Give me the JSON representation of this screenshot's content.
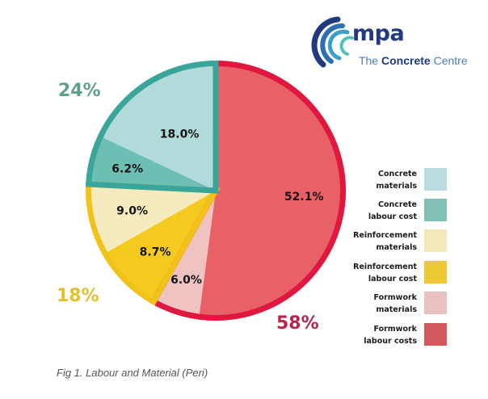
{
  "logo": {
    "brand": "mpa",
    "subtitle_prefix": "The",
    "subtitle_bold": "Concrete",
    "subtitle_suffix": "Centre"
  },
  "caption": "Fig 1. Labour and Material (Peri)",
  "colors": {
    "concrete_border": "#3aa59a",
    "reinforcement_border": "#f2c21a",
    "formwork_border": "#e0173f",
    "concrete_group_text": "#5fa08c",
    "reinforcement_group_text": "#e6bf2c",
    "formwork_group_text": "#b5254a"
  },
  "chart_data": {
    "type": "pie",
    "title": "Fig 1. Labour and Material (Peri)",
    "start_angle": "12 o'clock",
    "direction": "clockwise",
    "slices": [
      {
        "name": "Formwork labour costs",
        "value": 52.1,
        "label": "52.1%",
        "color": "#e86166",
        "group": "formwork"
      },
      {
        "name": "Formwork materials",
        "value": 6.0,
        "label": "6.0%",
        "color": "#efc3c2",
        "group": "formwork"
      },
      {
        "name": "Reinforcement labour cost",
        "value": 8.7,
        "label": "8.7%",
        "color": "#f4ca1e",
        "group": "reinforcement"
      },
      {
        "name": "Reinforcement materials",
        "value": 9.0,
        "label": "9.0%",
        "color": "#f6ebbf",
        "group": "reinforcement"
      },
      {
        "name": "Concrete labour cost",
        "value": 6.2,
        "label": "6.2%",
        "color": "#6dbfb3",
        "group": "concrete"
      },
      {
        "name": "Concrete materials",
        "value": 18.0,
        "label": "18.0%",
        "color": "#b1dbd8",
        "group": "concrete"
      }
    ],
    "groups": [
      {
        "name": "concrete",
        "total_label": "24%",
        "total": 24
      },
      {
        "name": "reinforcement",
        "total_label": "18%",
        "total": 18
      },
      {
        "name": "formwork",
        "total_label": "58%",
        "total": 58
      }
    ],
    "legend": {
      "position": "right",
      "entries": [
        {
          "line1": "Concrete",
          "line2": "materials",
          "color": "#b9dcdf"
        },
        {
          "line1": "Concrete",
          "line2": "labour cost",
          "color": "#83c1b6"
        },
        {
          "line1": "Reinforcement",
          "line2": "materials",
          "color": "#f1e7b8"
        },
        {
          "line1": "Reinforcement",
          "line2": "labour cost",
          "color": "#ecc834"
        },
        {
          "line1": "Formwork",
          "line2": "materials",
          "color": "#e8c1c0"
        },
        {
          "line1": "Formwork",
          "line2": "labour costs",
          "color": "#d2585e"
        }
      ]
    }
  }
}
